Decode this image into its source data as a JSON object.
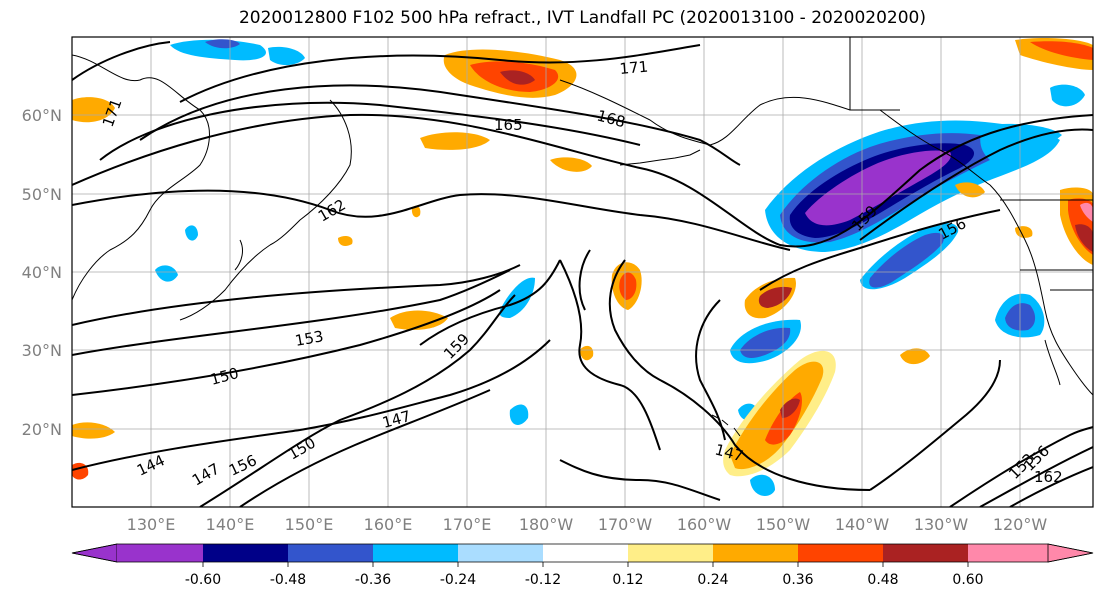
{
  "title": "2020012800 F102 500 hPa refract., IVT Landfall PC (2020013100 - 2020020200)",
  "latitude_labels": [
    "60°N",
    "50°N",
    "40°N",
    "30°N",
    "20°N"
  ],
  "longitude_labels": [
    "130°E",
    "140°E",
    "150°E",
    "160°E",
    "170°E",
    "180°W",
    "170°W",
    "160°W",
    "150°W",
    "140°W",
    "130°W",
    "120°W"
  ],
  "contour_labels": [
    "171",
    "171",
    "168",
    "165",
    "162",
    "159",
    "156",
    "153",
    "150",
    "159",
    "147",
    "147",
    "150",
    "156",
    "144",
    "147",
    "153",
    "156",
    "162"
  ],
  "colorbar": {
    "tick_labels": [
      "-0.60",
      "-0.48",
      "-0.36",
      "-0.24",
      "-0.12",
      "0.12",
      "0.24",
      "0.36",
      "0.48",
      "0.60"
    ],
    "colors": [
      "#9933cc",
      "#000088",
      "#3355cc",
      "#00bbff",
      "#aaddff",
      "#ffffff",
      "#ffee88",
      "#ffaa00",
      "#ff4400",
      "#aa2222",
      "#ff88aa"
    ]
  },
  "shade_colors": {
    "purple": "#9933cc",
    "navy": "#000088",
    "blue": "#3355cc",
    "cyan": "#00bbff",
    "lightblue": "#aaddff",
    "yellow": "#ffee88",
    "orange": "#ffaa00",
    "redorange": "#ff4400",
    "darkred": "#aa2222",
    "pink": "#ff88aa"
  }
}
